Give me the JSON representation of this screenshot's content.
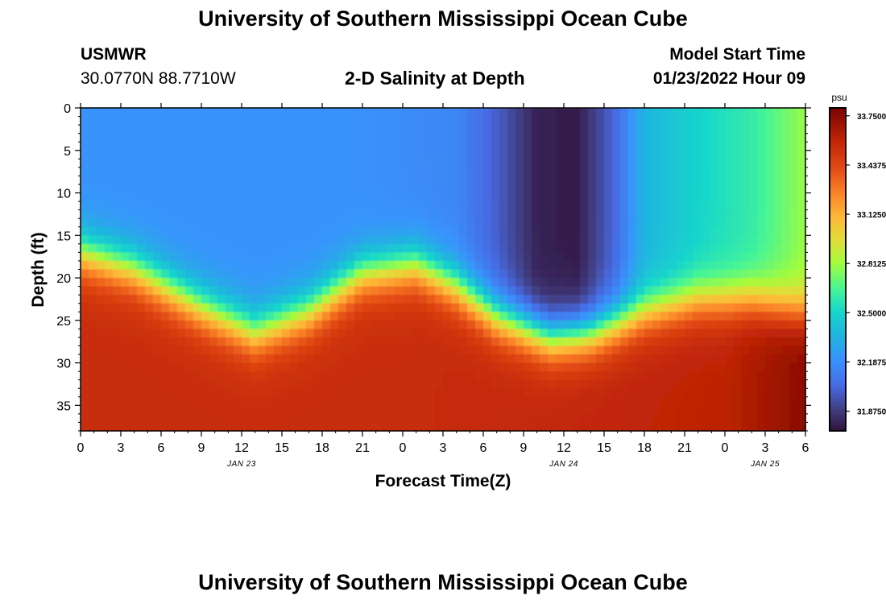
{
  "header": {
    "title": "University of Southern Mississippi Ocean Cube",
    "station": "USMWR",
    "coords": "30.0770N  88.7710W",
    "subtitle": "2-D Salinity at Depth",
    "model_label": "Model Start Time",
    "model_time": "01/23/2022 Hour 09"
  },
  "footer": {
    "title": "University of Southern Mississippi Ocean Cube"
  },
  "colors": {
    "frame": "#000000",
    "background": "#ffffff"
  },
  "chart_data": {
    "type": "heatmap",
    "xlabel": "Forecast Time(Z)",
    "ylabel": "Depth (ft)",
    "x_ticks": [
      "0",
      "3",
      "6",
      "9",
      "12",
      "15",
      "18",
      "21",
      "0",
      "3",
      "6",
      "9",
      "12",
      "15",
      "18",
      "21",
      "0",
      "3",
      "6"
    ],
    "x_range_hours": [
      0,
      54
    ],
    "date_labels": [
      {
        "hour": 12,
        "text": "JAN 23"
      },
      {
        "hour": 36,
        "text": "JAN 24"
      },
      {
        "hour": 51,
        "text": "JAN 25"
      }
    ],
    "y_ticks": [
      0,
      5,
      10,
      15,
      20,
      25,
      30,
      35
    ],
    "y_range_ft": [
      0,
      38
    ],
    "colorbar": {
      "unit": "psu",
      "min": 31.75,
      "max": 33.8,
      "tick_values": [
        33.75,
        33.4375,
        33.125,
        32.8125,
        32.5,
        32.1875,
        31.875
      ],
      "tick_labels": [
        "33.7500",
        "33.4375",
        "33.1250",
        "32.8125",
        "32.5000",
        "32.1875",
        "31.8750"
      ]
    },
    "interface_depth_ft": [
      {
        "hour": 0,
        "depth": 17
      },
      {
        "hour": 4,
        "depth": 19
      },
      {
        "hour": 9,
        "depth": 23.5
      },
      {
        "hour": 13,
        "depth": 26.5
      },
      {
        "hour": 17,
        "depth": 24
      },
      {
        "hour": 21,
        "depth": 19.5
      },
      {
        "hour": 25,
        "depth": 18.5
      },
      {
        "hour": 28,
        "depth": 21
      },
      {
        "hour": 31,
        "depth": 24.5
      },
      {
        "hour": 35,
        "depth": 27
      },
      {
        "hour": 38,
        "depth": 26.5
      },
      {
        "hour": 42,
        "depth": 24
      },
      {
        "hour": 46,
        "depth": 22.5
      },
      {
        "hour": 50,
        "depth": 22.5
      },
      {
        "hour": 54,
        "depth": 24
      }
    ],
    "surface_salinity_psu": [
      {
        "hour": 0,
        "value": 32.2
      },
      {
        "hour": 20,
        "value": 32.2
      },
      {
        "hour": 28,
        "value": 32.15
      },
      {
        "hour": 31,
        "value": 32.0
      },
      {
        "hour": 34,
        "value": 31.8
      },
      {
        "hour": 37,
        "value": 31.78
      },
      {
        "hour": 40,
        "value": 32.05
      },
      {
        "hour": 42,
        "value": 32.35
      },
      {
        "hour": 46,
        "value": 32.5
      },
      {
        "hour": 50,
        "value": 32.6
      },
      {
        "hour": 54,
        "value": 32.8
      }
    ],
    "deep_salinity_psu": [
      {
        "hour": 0,
        "value": 33.55
      },
      {
        "hour": 24,
        "value": 33.55
      },
      {
        "hour": 48,
        "value": 33.6
      },
      {
        "hour": 54,
        "value": 33.75
      }
    ]
  }
}
